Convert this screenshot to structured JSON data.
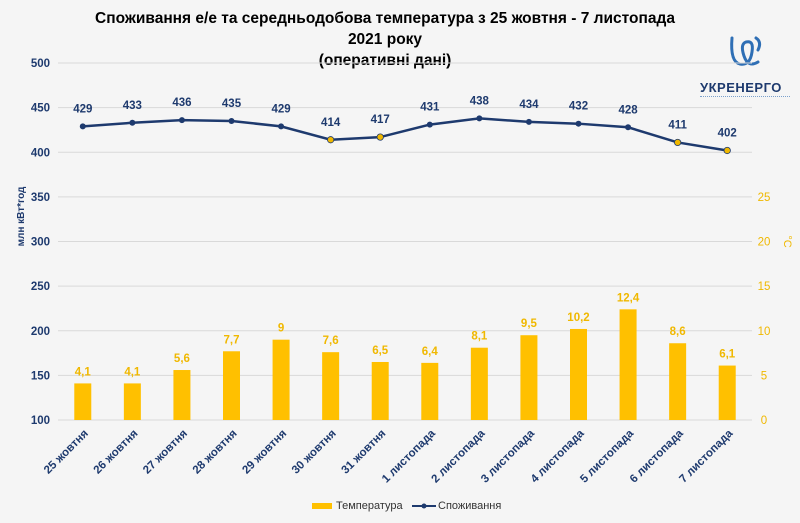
{
  "title_line1": "Споживання е/е та середньодобова температура з 25 жовтня - 7 листопада 2021 року",
  "title_line2": "(оперативні дані)",
  "logo_text": "УКРЕНЕРГО",
  "colors": {
    "consumption": "#1e3a6e",
    "temperature": "#ffc000",
    "grid": "#d9d9d9",
    "accent": "#f0b800"
  },
  "chart_data": {
    "type": "bar+line",
    "categories": [
      "25 жовтня",
      "26 жовтня",
      "27 жовтня",
      "28 жовтня",
      "29 жовтня",
      "30 жовтня",
      "31 жовтня",
      "1 листопада",
      "2 листопада",
      "3 листопада",
      "4 листопада",
      "5 листопада",
      "6 листопада",
      "7 листопада"
    ],
    "series": [
      {
        "name": "Температура",
        "type": "bar",
        "axis": "right",
        "values": [
          4.1,
          4.1,
          5.6,
          7.7,
          9,
          7.6,
          6.5,
          6.4,
          8.1,
          9.5,
          10.2,
          12.4,
          8.6,
          6.1
        ],
        "labels": [
          "4,1",
          "4,1",
          "5,6",
          "7,7",
          "9",
          "7,6",
          "6,5",
          "6,4",
          "8,1",
          "9,5",
          "10,2",
          "12,4",
          "8,6",
          "6,1"
        ]
      },
      {
        "name": "Споживання",
        "type": "line",
        "axis": "left",
        "values": [
          429,
          433,
          436,
          435,
          429,
          414,
          417,
          431,
          438,
          434,
          432,
          428,
          411,
          402
        ],
        "weekend_markers": [
          false,
          false,
          false,
          false,
          false,
          true,
          true,
          false,
          false,
          false,
          false,
          false,
          true,
          true
        ]
      }
    ],
    "ylabel": "млн кВт*год",
    "ylim": [
      100,
      500
    ],
    "yticks": [
      100,
      150,
      200,
      250,
      300,
      350,
      400,
      450,
      500
    ],
    "y2label": "°C",
    "y2lim": [
      0,
      40
    ],
    "y2ticks": [
      0,
      5,
      10,
      15,
      20,
      25
    ],
    "grid": true,
    "legend_position": "bottom"
  }
}
